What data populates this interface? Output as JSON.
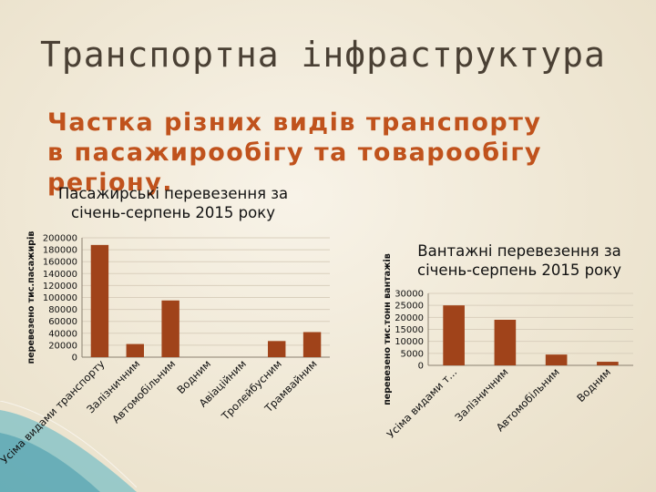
{
  "title": "Транспортна інфраструктура",
  "subtitle": "Частка різних видів транспорту в пасажирообігу та товарообігу регіону.",
  "chart_data": [
    {
      "type": "bar",
      "title": "Пасажирські перевезення за січень-серпень 2015 року",
      "ylabel": "перевезено тис.пасажирів",
      "xlabel": "",
      "categories": [
        "Усіма видами транспорту",
        "Залізничним",
        "Автомобільним",
        "Водним",
        "Авіаційним",
        "Тролейбусним",
        "Трамвайним"
      ],
      "values": [
        188000,
        22000,
        95000,
        0,
        0,
        27000,
        42000
      ],
      "ylim": [
        0,
        200000
      ],
      "yticks": [
        "0",
        "20000",
        "40000",
        "60000",
        "80000",
        "100000",
        "120000",
        "140000",
        "160000",
        "180000",
        "200000"
      ],
      "grid": true,
      "legend": "none",
      "color": "#a0431a"
    },
    {
      "type": "bar",
      "title": "Вантажні перевезення за січень-серпень 2015 року",
      "ylabel": "перевезено тис.тонн вантажів",
      "xlabel": "",
      "categories": [
        "Усіма видами т...",
        "Залізничним",
        "Автомобільним",
        "Водним"
      ],
      "values": [
        25000,
        19000,
        4500,
        1500
      ],
      "ylim": [
        0,
        30000
      ],
      "yticks": [
        "0",
        "5000",
        "10000",
        "15000",
        "20000",
        "25000",
        "30000"
      ],
      "grid": true,
      "legend": "none",
      "color": "#a0431a"
    }
  ]
}
